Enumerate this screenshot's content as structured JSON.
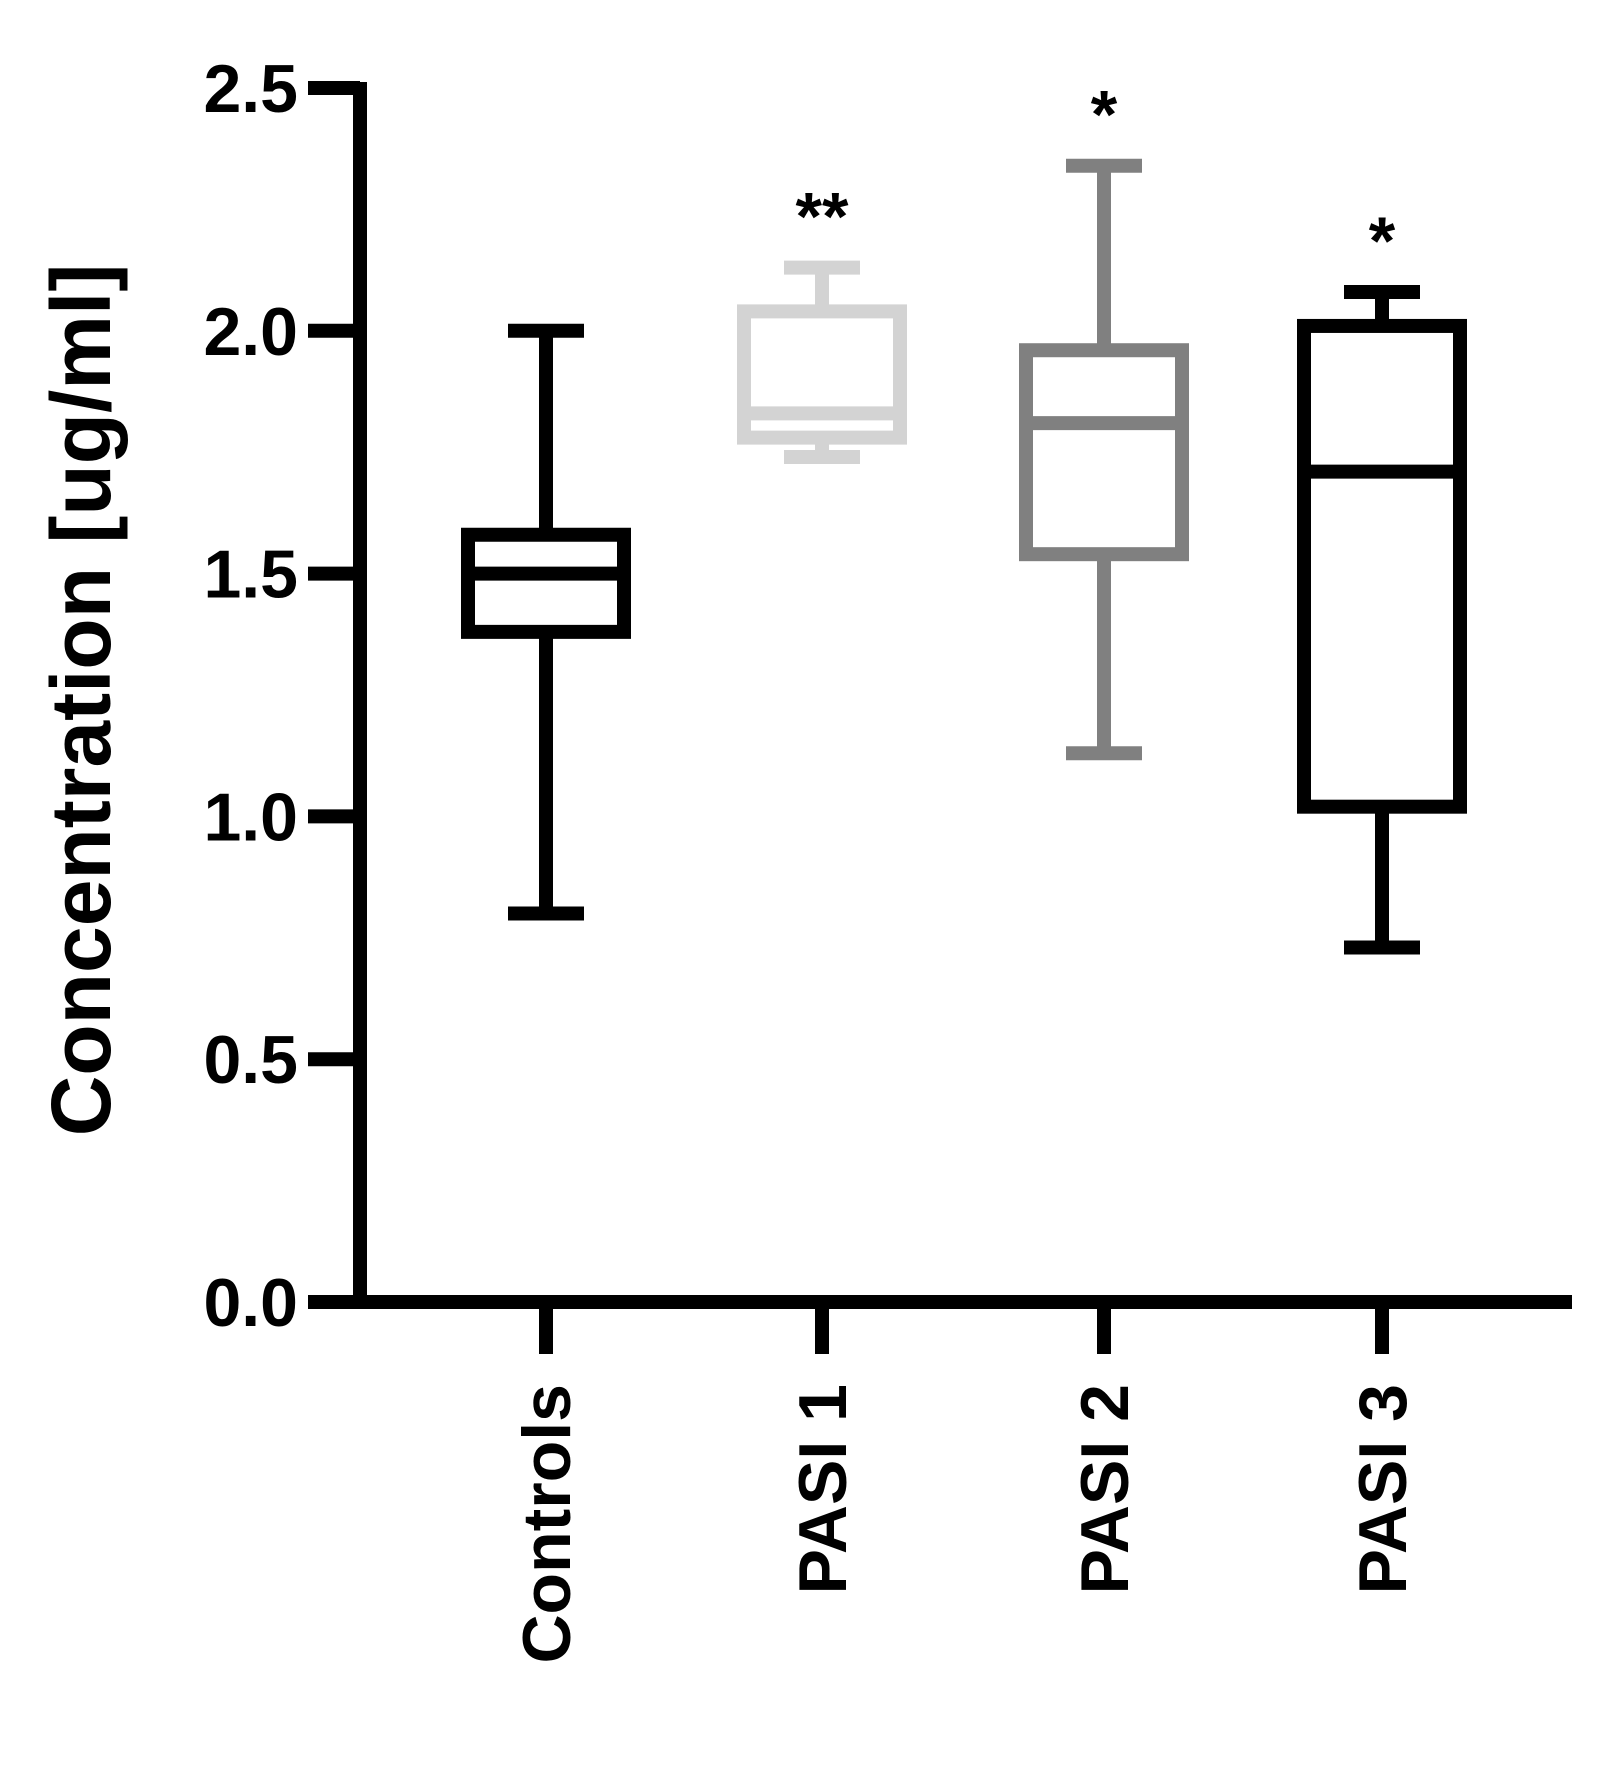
{
  "chart_data": {
    "type": "box",
    "ylabel": "Concentration [ug/ml]",
    "xlabel": "",
    "ylim": [
      0,
      2.5
    ],
    "yticks": [
      "0.0",
      "0.5",
      "1.0",
      "1.5",
      "2.0",
      "2.5"
    ],
    "categories": [
      "Controls",
      "PASI 1",
      "PASI 2",
      "PASI 3"
    ],
    "boxes": [
      {
        "category": "Controls",
        "min": 0.8,
        "q1": 1.38,
        "median": 1.5,
        "q3": 1.58,
        "max": 2.0,
        "color": "#000000",
        "significance": ""
      },
      {
        "category": "PASI 1",
        "min": 1.74,
        "q1": 1.78,
        "median": 1.83,
        "q3": 2.04,
        "max": 2.13,
        "color": "#d3d3d3",
        "significance": "**"
      },
      {
        "category": "PASI 2",
        "min": 1.13,
        "q1": 1.54,
        "median": 1.81,
        "q3": 1.96,
        "max": 2.34,
        "color": "#808080",
        "significance": "*"
      },
      {
        "category": "PASI 3",
        "min": 0.73,
        "q1": 1.02,
        "median": 1.71,
        "q3": 2.01,
        "max": 2.08,
        "color": "#000000",
        "significance": "*"
      }
    ],
    "grid": false
  }
}
